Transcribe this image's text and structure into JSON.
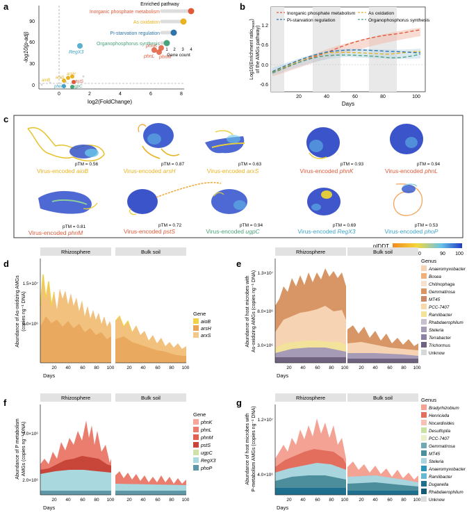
{
  "panels": {
    "a": {
      "label": "a",
      "ylabel": "-log10(p-adj)",
      "xlabel": "log2(FoldChange)",
      "yticks": [
        "0",
        "30",
        "60",
        "90"
      ],
      "xticks": [
        "0",
        "2",
        "4",
        "6",
        "8"
      ],
      "inset_title": "Enriched pathway",
      "inset_xlabel": "Gene count",
      "inset_xticks": [
        "1",
        "2",
        "3",
        "4"
      ],
      "pathways": [
        {
          "name": "Inorganic phosphate metabolism",
          "count": 4,
          "color": "#e05a3a"
        },
        {
          "name": "As oxidation",
          "count": 3,
          "color": "#e8b321"
        },
        {
          "name": "Pi-starvation regulation",
          "count": 2,
          "color": "#2e74a9"
        },
        {
          "name": "Organophosphorus synthesis",
          "count": 1,
          "color": "#4aa27a"
        }
      ],
      "genes": [
        {
          "name": "RegX3",
          "color": "#3ea3c6"
        },
        {
          "name": "phnK",
          "color": "#e05a3a"
        },
        {
          "name": "phnL",
          "color": "#e05a3a"
        },
        {
          "name": "phnM",
          "color": "#e05a3a"
        },
        {
          "name": "aioB",
          "color": "#e8b321"
        },
        {
          "name": "arsH",
          "color": "#e8b321"
        },
        {
          "name": "arsS",
          "color": "#e8b321"
        },
        {
          "name": "pstS",
          "color": "#e05a3a"
        },
        {
          "name": "phoP",
          "color": "#3ea3c6"
        },
        {
          "name": "ugpC",
          "color": "#4aa27a"
        }
      ]
    },
    "b": {
      "label": "b",
      "ylabel_line1": "Log10(Enrichment ratio",
      "ylabel_sub": "mean",
      "ylabel_line1b": ")",
      "ylabel_line2": "of the AMGs pathway)",
      "xlabel": "Days",
      "yticks": [
        "-0.6",
        "0.0",
        "0.6",
        "1.2"
      ],
      "xticks": [
        "20",
        "40",
        "60",
        "80",
        "100"
      ],
      "legend": [
        {
          "name": "Inorganic phosphate metabolism",
          "color": "#e05a3a"
        },
        {
          "name": "As oxidation",
          "color": "#e8b321"
        },
        {
          "name": "Pi-starvation regulation",
          "color": "#2e74a9"
        },
        {
          "name": "Organophosphorus synthesis",
          "color": "#4aa27a"
        }
      ]
    },
    "c": {
      "label": "c",
      "prefix": "Virus-encoded",
      "plddt_title": "pIDDT",
      "plddt_ticks": [
        "50",
        "70",
        "90",
        "100"
      ],
      "proteins": [
        {
          "gene": "aioB",
          "ptm": "pTM = 0.56",
          "color": "#e8b321"
        },
        {
          "gene": "arsH",
          "ptm": "pTM = 0.87",
          "color": "#e8b321"
        },
        {
          "gene": "arxS",
          "ptm": "pTM = 0.63",
          "color": "#e8b321"
        },
        {
          "gene": "phnK",
          "ptm": "pTM = 0.93",
          "color": "#e05a3a"
        },
        {
          "gene": "phnL",
          "ptm": "pTM = 0.94",
          "color": "#e05a3a"
        },
        {
          "gene": "phnM",
          "ptm": "pTM = 0.81",
          "color": "#e05a3a"
        },
        {
          "gene": "pstS",
          "ptm": "pTM = 0.72",
          "color": "#e05a3a"
        },
        {
          "gene": "ugpC",
          "ptm": "pTM = 0.94",
          "color": "#4aa27a"
        },
        {
          "gene": "RegX3",
          "ptm": "pTM = 0.69",
          "color": "#3ea3c6"
        },
        {
          "gene": "phoP",
          "ptm": "pTM = 0.53",
          "color": "#3ea3c6"
        }
      ]
    },
    "d": {
      "label": "d",
      "ylabel": "Abundance of As-oxidizing AMGs",
      "ylabel2": "(copies ng⁻¹ DNA)",
      "facets": [
        "Rhizosphere",
        "Bulk soil"
      ],
      "yticks": [
        "5.0×10⁶",
        "1.5×10⁷"
      ],
      "xticks": [
        "20",
        "40",
        "60",
        "80",
        "100"
      ],
      "xlabel": "Days",
      "legend_title": "Gene",
      "legend": [
        {
          "name": "aioB",
          "color": "#f0d24a"
        },
        {
          "name": "arsH",
          "color": "#e8a659"
        },
        {
          "name": "arxS",
          "color": "#f2c98a"
        }
      ]
    },
    "e": {
      "label": "e",
      "ylabel": "Abundance  of host microbes with",
      "ylabel2": "As-oxidizing AMGs (copies ng⁻¹ DNA)",
      "facets": [
        "Rhizosphere",
        "Bulk soil"
      ],
      "yticks": [
        "3.0×10⁶",
        "8.0×10⁶",
        "1.3×10⁷"
      ],
      "xticks": [
        "20",
        "40",
        "60",
        "80",
        "100"
      ],
      "xlabel": "Days",
      "legend_title": "Genus",
      "legend": [
        {
          "name": "Anaeromyxobacter",
          "color": "#f6d3b3"
        },
        {
          "name": "Bosea",
          "color": "#efb07c"
        },
        {
          "name": "Chitinophaga",
          "color": "#f7e2cf"
        },
        {
          "name": "Gemmatirosa",
          "color": "#d89666"
        },
        {
          "name": "MT45",
          "color": "#c98a6a"
        },
        {
          "name": "PCC-7407",
          "color": "#f8d9a8"
        },
        {
          "name": "Ramlibacter",
          "color": "#f3e39a"
        },
        {
          "name": "Rhabdaerophilum",
          "color": "#c8c0cf"
        },
        {
          "name": "Steleria",
          "color": "#a69bb7"
        },
        {
          "name": "Terrabacter",
          "color": "#8e7fa5"
        },
        {
          "name": "Trichormus",
          "color": "#6f627f"
        },
        {
          "name": "Unknow",
          "color": "#d8d8d8"
        }
      ]
    },
    "f": {
      "label": "f",
      "ylabel": "Abundance of P metabolism",
      "ylabel2": "AMGs (copies ng⁻¹ DNA)",
      "facets": [
        "Rhizosphere",
        "Bulk soil"
      ],
      "yticks": [
        "2.0×10⁶",
        "9.0×10⁶"
      ],
      "xticks": [
        "20",
        "40",
        "60",
        "80",
        "100"
      ],
      "xlabel": "Days",
      "legend_title": "Gene",
      "legend": [
        {
          "name": "phnK",
          "color": "#f4a79a"
        },
        {
          "name": "phnL",
          "color": "#ea7d6e"
        },
        {
          "name": "phnM",
          "color": "#e2604f"
        },
        {
          "name": "pstS",
          "color": "#c8453a"
        },
        {
          "name": "ugpC",
          "color": "#cfe3a8"
        },
        {
          "name": "RegX3",
          "color": "#a9d8df"
        },
        {
          "name": "phoP",
          "color": "#5e97a6"
        }
      ]
    },
    "g": {
      "label": "g",
      "ylabel": "Abundance  of host microbes with",
      "ylabel2": "P-metabolism AMGs (copies ng⁻¹ DNA)",
      "facets": [
        "Rhizosphere",
        "Bulk soil"
      ],
      "yticks": [
        "4.0×10⁶",
        "1.2×10⁷"
      ],
      "xticks": [
        "20",
        "40",
        "60",
        "80",
        "100"
      ],
      "xlabel": "Days",
      "legend_title": "Genus",
      "legend": [
        {
          "name": "Bradyrhizobium",
          "color": "#f3a294"
        },
        {
          "name": "Henriciella",
          "color": "#e46e5e"
        },
        {
          "name": "Nocardioides",
          "color": "#f7c1b6"
        },
        {
          "name": "Desulfoplia",
          "color": "#c7e2a2"
        },
        {
          "name": "PCC-7407",
          "color": "#e9f0c7"
        },
        {
          "name": "Gemmatirosa",
          "color": "#6fa9b3"
        },
        {
          "name": "MT45",
          "color": "#4d8e9c"
        },
        {
          "name": "Steleria",
          "color": "#a8d5de"
        },
        {
          "name": "Anaeromyxobacter",
          "color": "#2d95b5"
        },
        {
          "name": "Ramlibacter",
          "color": "#67b9d3"
        },
        {
          "name": "Duganella",
          "color": "#1f6f8f"
        },
        {
          "name": "Rhabdaerophilum",
          "color": "#165a75"
        },
        {
          "name": "Unknow",
          "color": "#dcdcdc"
        }
      ]
    }
  }
}
